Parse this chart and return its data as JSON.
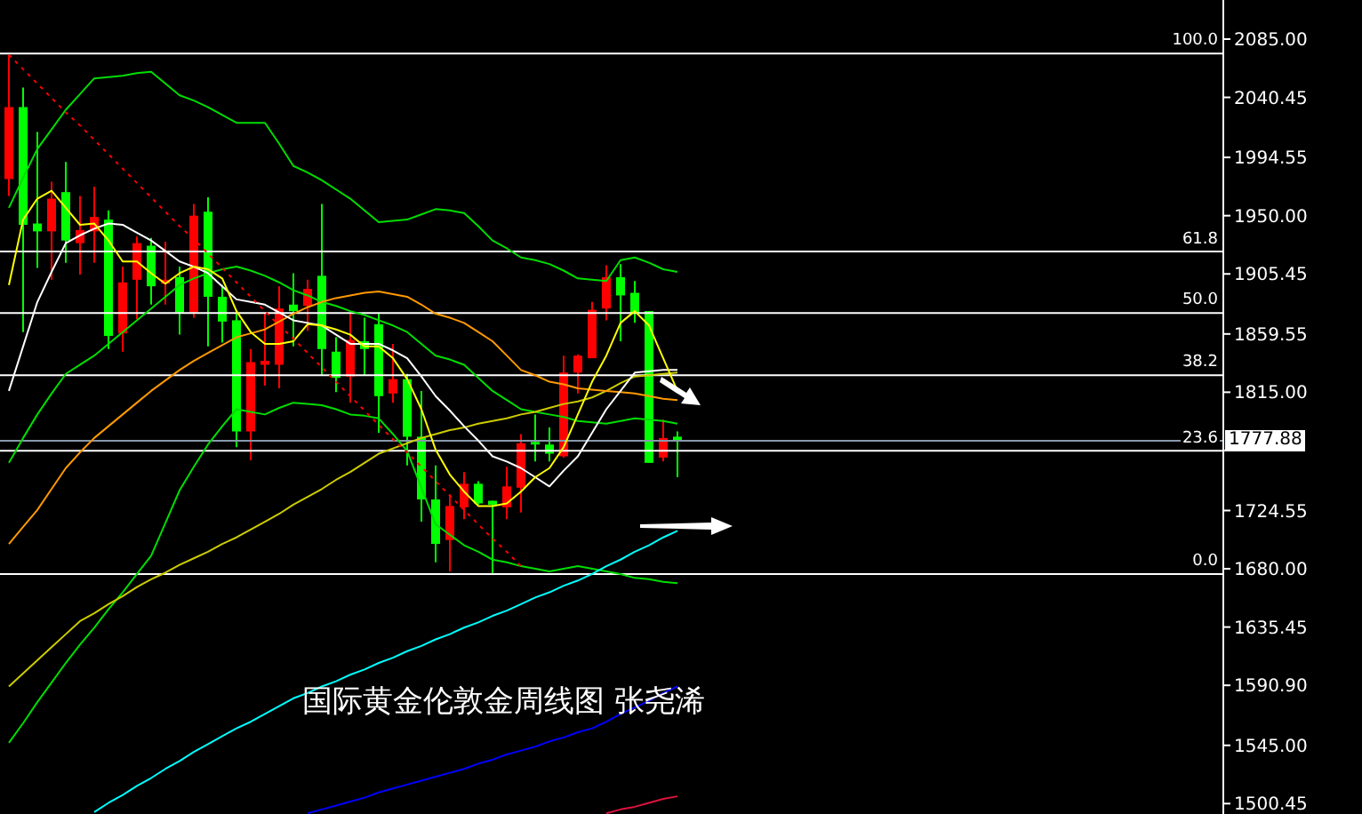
{
  "chart_data": {
    "type": "candlestick",
    "title": "国际黄金伦敦金周线图 张尧浠",
    "categories": [
      null,
      null,
      null,
      null,
      null,
      null,
      null,
      null,
      null,
      null,
      null,
      null,
      null,
      null,
      null,
      null,
      null,
      null,
      null,
      null,
      null,
      null,
      null,
      null,
      null,
      null,
      null,
      null,
      null,
      null,
      null,
      null,
      null,
      null,
      null,
      null,
      null,
      null,
      null,
      null,
      null,
      null,
      null,
      null,
      null,
      null,
      null,
      null
    ],
    "ohlc": [
      [
        1978,
        2073,
        1965,
        2033
      ],
      [
        2033,
        2048,
        1861,
        1943
      ],
      [
        1944,
        2014,
        1910,
        1938
      ],
      [
        1938,
        1976,
        1901,
        1963
      ],
      [
        1968,
        1991,
        1914,
        1931
      ],
      [
        1929,
        1965,
        1905,
        1939
      ],
      [
        1938,
        1972,
        1914,
        1949
      ],
      [
        1947,
        1954,
        1848,
        1858
      ],
      [
        1860,
        1911,
        1846,
        1899
      ],
      [
        1901,
        1934,
        1871,
        1929
      ],
      [
        1927,
        1933,
        1882,
        1896
      ],
      [
        1898,
        1930,
        1882,
        1901
      ],
      [
        1903,
        1911,
        1859,
        1876
      ],
      [
        1876,
        1959,
        1872,
        1950
      ],
      [
        1953,
        1964,
        1850,
        1888
      ],
      [
        1888,
        1897,
        1853,
        1869
      ],
      [
        1870,
        1875,
        1773,
        1785
      ],
      [
        1785,
        1848,
        1763,
        1838
      ],
      [
        1836,
        1875,
        1820,
        1839
      ],
      [
        1836,
        1896,
        1818,
        1879
      ],
      [
        1882,
        1906,
        1850,
        1877
      ],
      [
        1881,
        1901,
        1862,
        1894
      ],
      [
        1904,
        1959,
        1828,
        1848
      ],
      [
        1846,
        1857,
        1815,
        1826
      ],
      [
        1827,
        1875,
        1807,
        1855
      ],
      [
        1854,
        1872,
        1828,
        1848
      ],
      [
        1867,
        1875,
        1784,
        1812
      ],
      [
        1814,
        1852,
        1807,
        1825
      ],
      [
        1825,
        1829,
        1759,
        1781
      ],
      [
        1781,
        1816,
        1716,
        1733
      ],
      [
        1733,
        1759,
        1685,
        1699
      ],
      [
        1702,
        1737,
        1678,
        1728
      ],
      [
        1727,
        1754,
        1718,
        1745
      ],
      [
        1745,
        1747,
        1729,
        1730
      ],
      [
        1732,
        1732,
        1676,
        1729
      ],
      [
        1727,
        1758,
        1718,
        1743
      ],
      [
        1742,
        1783,
        1723,
        1776
      ],
      [
        1777,
        1798,
        1762,
        1775
      ],
      [
        1775,
        1788,
        1762,
        1768
      ],
      [
        1766,
        1843,
        1765,
        1830
      ],
      [
        1830,
        1844,
        1814,
        1843
      ],
      [
        1841,
        1884,
        1841,
        1878
      ],
      [
        1879,
        1912,
        1870,
        1903
      ],
      [
        1903,
        1913,
        1854,
        1889
      ],
      [
        1891,
        1900,
        1868,
        1875
      ],
      [
        1877,
        1877,
        1761,
        1761
      ],
      [
        1765,
        1794,
        1762,
        1780
      ],
      [
        1781,
        1785,
        1750,
        1778
      ]
    ],
    "colors": [
      "#ff0000",
      "#00ff00",
      "#00ff00",
      "#ff0000",
      "#00ff00",
      "#ff0000",
      "#ff0000",
      "#00ff00",
      "#ff0000",
      "#ff0000",
      "#00ff00",
      "#ff0000",
      "#00ff00",
      "#ff0000",
      "#00ff00",
      "#00ff00",
      "#00ff00",
      "#ff0000",
      "#ff0000",
      "#ff0000",
      "#00ff00",
      "#ff0000",
      "#00ff00",
      "#00ff00",
      "#ff0000",
      "#00ff00",
      "#00ff00",
      "#ff0000",
      "#00ff00",
      "#00ff00",
      "#00ff00",
      "#ff0000",
      "#ff0000",
      "#00ff00",
      "#00ff00",
      "#ff0000",
      "#ff0000",
      "#00ff00",
      "#00ff00",
      "#ff0000",
      "#ff0000",
      "#ff0000",
      "#ff0000",
      "#00ff00",
      "#00ff00",
      "#00ff00",
      "#ff0000",
      "#00ff00"
    ],
    "series": [
      {
        "type": "line",
        "color": "#00dd00",
        "values": [
          1956,
          1979,
          2001,
          2016,
          2031,
          2043,
          2055,
          2056,
          2057,
          2059,
          2060,
          2051,
          2042,
          2038,
          2033,
          2027,
          2021,
          2021,
          2021,
          2005,
          1988,
          1983,
          1977,
          1970,
          1963,
          1954,
          1945,
          1946,
          1947,
          1951,
          1955,
          1954,
          1952,
          1942,
          1931,
          1925,
          1918,
          1916,
          1913,
          1908,
          1902,
          1901,
          1900,
          1916,
          1918,
          1914,
          1909,
          1907
        ]
      },
      {
        "type": "line",
        "color": "#00dd00",
        "values": [
          1761,
          1780,
          1798,
          1814,
          1829,
          1836,
          1843,
          1852,
          1861,
          1870,
          1879,
          1888,
          1897,
          1902,
          1906,
          1909,
          1911,
          1908,
          1904,
          1899,
          1893,
          1889,
          1884,
          1881,
          1877,
          1874,
          1870,
          1866,
          1861,
          1852,
          1843,
          1840,
          1836,
          1826,
          1816,
          1809,
          1802,
          1800,
          1798,
          1796,
          1793,
          1792,
          1791,
          1793,
          1795,
          1794,
          1793,
          1791
        ]
      },
      {
        "type": "line",
        "color": "#00dd00",
        "values": [
          1547,
          1562,
          1578,
          1593,
          1608,
          1622,
          1635,
          1649,
          1662,
          1676,
          1690,
          1715,
          1740,
          1758,
          1775,
          1789,
          1802,
          1800,
          1798,
          1803,
          1807,
          1806,
          1805,
          1802,
          1798,
          1797,
          1795,
          1783,
          1770,
          1742,
          1714,
          1706,
          1698,
          1693,
          1687,
          1685,
          1682,
          1680,
          1678,
          1680,
          1682,
          1680,
          1678,
          1676,
          1673,
          1672,
          1670,
          1669
        ]
      },
      {
        "type": "line",
        "color": "#cccc00",
        "values": [
          1590,
          1600,
          1610,
          1620,
          1630,
          1640,
          1646,
          1653,
          1659,
          1666,
          1672,
          1677,
          1683,
          1688,
          1693,
          1699,
          1704,
          1710,
          1716,
          1722,
          1729,
          1735,
          1741,
          1748,
          1754,
          1761,
          1768,
          1772,
          1776,
          1780,
          1783,
          1786,
          1788,
          1791,
          1793,
          1795,
          1798,
          1800,
          1803,
          1806,
          1808,
          1811,
          1816,
          1822,
          1827,
          1828,
          1829,
          1830
        ]
      },
      {
        "type": "line",
        "color": "#00ffff",
        "values": [
          null,
          null,
          null,
          null,
          null,
          null,
          1494,
          1501,
          1507,
          1514,
          1520,
          1527,
          1533,
          1540,
          1546,
          1552,
          1558,
          1563,
          1569,
          1575,
          1581,
          1585,
          1590,
          1594,
          1599,
          1603,
          1608,
          1612,
          1617,
          1621,
          1626,
          1630,
          1635,
          1639,
          1644,
          1648,
          1653,
          1658,
          1662,
          1667,
          1671,
          1676,
          1682,
          1687,
          1693,
          1698,
          1704,
          1709
        ]
      },
      {
        "type": "line",
        "color": "#0000ff",
        "values": [
          null,
          null,
          null,
          null,
          null,
          null,
          null,
          null,
          null,
          null,
          null,
          null,
          null,
          null,
          null,
          null,
          null,
          null,
          null,
          null,
          null,
          1493,
          1496,
          1499,
          1502,
          1505,
          1509,
          1512,
          1515,
          1518,
          1521,
          1524,
          1527,
          1531,
          1534,
          1538,
          1541,
          1544,
          1548,
          1551,
          1555,
          1558,
          1563,
          1569,
          1574,
          1579,
          1585,
          1590
        ]
      },
      {
        "type": "line",
        "color": "#dc143c",
        "values": [
          null,
          null,
          null,
          null,
          null,
          null,
          null,
          null,
          null,
          null,
          null,
          null,
          null,
          null,
          null,
          null,
          null,
          null,
          null,
          null,
          null,
          null,
          null,
          null,
          null,
          null,
          null,
          null,
          null,
          null,
          null,
          null,
          null,
          null,
          null,
          null,
          null,
          null,
          null,
          null,
          null,
          null,
          1493,
          1496,
          1498,
          1501,
          1504,
          1506
        ]
      },
      {
        "type": "line",
        "color": "#ff9900",
        "values": [
          1699,
          1712,
          1725,
          1741,
          1757,
          1769,
          1780,
          1789,
          1798,
          1807,
          1816,
          1824,
          1832,
          1839,
          1845,
          1851,
          1857,
          1860,
          1863,
          1869,
          1875,
          1880,
          1884,
          1887,
          1889,
          1891,
          1892,
          1890,
          1888,
          1882,
          1875,
          1872,
          1868,
          1861,
          1854,
          1843,
          1832,
          1828,
          1823,
          1821,
          1818,
          1817,
          1816,
          1815,
          1814,
          1812,
          1810,
          1809
        ]
      },
      {
        "type": "line",
        "color": "#ffffff",
        "values": [
          1816,
          1850,
          1884,
          1907,
          1929,
          1935,
          1940,
          1944,
          1943,
          1937,
          1931,
          1923,
          1915,
          1911,
          1906,
          1896,
          1886,
          1884,
          1882,
          1876,
          1870,
          1868,
          1866,
          1859,
          1852,
          1852,
          1852,
          1847,
          1841,
          1827,
          1812,
          1801,
          1789,
          1778,
          1766,
          1762,
          1757,
          1750,
          1743,
          1755,
          1766,
          1784,
          1802,
          1816,
          1830,
          1831,
          1832,
          1832
        ]
      },
      {
        "type": "line",
        "color": "#ffff00",
        "values": [
          1897,
          1947,
          1963,
          1969,
          1956,
          1943,
          1944,
          1931,
          1915,
          1915,
          1906,
          1898,
          1906,
          1911,
          1909,
          1902,
          1877,
          1861,
          1852,
          1852,
          1854,
          1867,
          1866,
          1863,
          1859,
          1850,
          1850,
          1841,
          1825,
          1802,
          1771,
          1752,
          1739,
          1728,
          1728,
          1730,
          1739,
          1750,
          1757,
          1773,
          1798,
          1823,
          1843,
          1868,
          1877,
          1866,
          1841,
          1816
        ]
      },
      {
        "type": "line",
        "color": "#ff0000",
        "line_style": "dotted",
        "values": [
          2073,
          2062,
          2051,
          2040,
          2029,
          2019,
          2008,
          1997,
          1986,
          1975,
          1964,
          1953,
          1942,
          1932,
          1921,
          1910,
          1899,
          1888,
          1877,
          1866,
          1856,
          1845,
          1834,
          1823,
          1812,
          1801,
          1790,
          1779,
          1769,
          1758,
          1747,
          1736,
          1725,
          1714,
          1703,
          1693,
          1682,
          null,
          null,
          null,
          null,
          null,
          null,
          null,
          null,
          null,
          null,
          null
        ]
      }
    ],
    "marker": "none",
    "ylim": [
      1492.5,
      2114.9
    ],
    "yticks": [
      {
        "value": 2085,
        "label": "2085.00"
      },
      {
        "value": 2040.45,
        "label": "2040.45"
      },
      {
        "value": 1994.55,
        "label": "1994.55"
      },
      {
        "value": 1950,
        "label": "1950.00"
      },
      {
        "value": 1905.45,
        "label": "1905.45"
      },
      {
        "value": 1859.55,
        "label": "1859.55"
      },
      {
        "value": 1815,
        "label": "1815.00"
      },
      {
        "value": 1770.45,
        "label": null
      },
      {
        "value": 1724.55,
        "label": "1724.55"
      },
      {
        "value": 1680,
        "label": "1680.00"
      },
      {
        "value": 1635.45,
        "label": "1635.45"
      },
      {
        "value": 1590.9,
        "label": "1590.90"
      },
      {
        "value": 1545,
        "label": "1545.00"
      },
      {
        "value": 1500.45,
        "label": "1500.45"
      }
    ],
    "tick_labels": "y",
    "ref_lines": [
      {
        "axis": "y",
        "value": 2074,
        "color": "#ffffff"
      },
      {
        "axis": "y",
        "value": 1922.6,
        "color": "#ffffff"
      },
      {
        "axis": "y",
        "value": 1875.5,
        "color": "#ffffff"
      },
      {
        "axis": "y",
        "value": 1828,
        "color": "#ffffff"
      },
      {
        "axis": "y",
        "value": 1770.2,
        "color": "#ffffff"
      },
      {
        "axis": "y",
        "value": 1676,
        "color": "#ffffff"
      },
      {
        "axis": "y",
        "value": 1777.88,
        "color": "#8899aa"
      }
    ],
    "annotations": [
      "100.0",
      "61.8",
      "50.0",
      "38.2",
      "23.6",
      "0.0",
      "1777.88"
    ]
  }
}
